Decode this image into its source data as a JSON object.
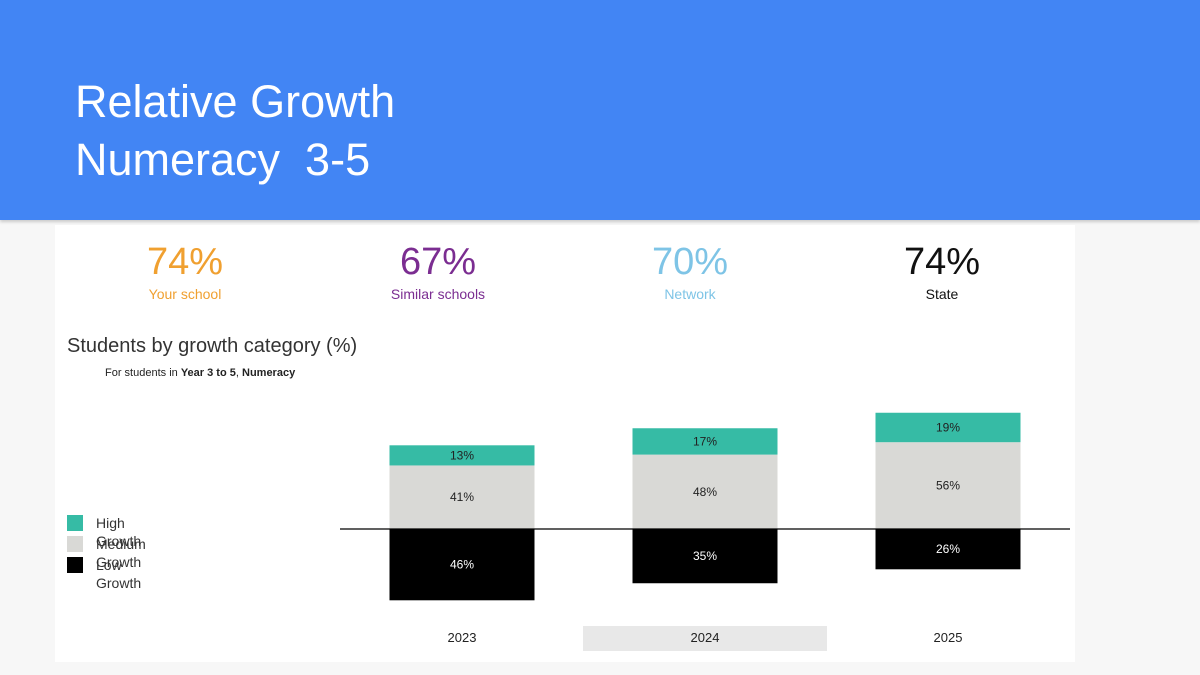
{
  "slide": {
    "title_line1": "Relative Growth",
    "title_line2": "Numeracy  3-5"
  },
  "stats": [
    {
      "value": "74%",
      "label": "Your school",
      "color": "#f0a030"
    },
    {
      "value": "67%",
      "label": "Similar schools",
      "color": "#7b2d91"
    },
    {
      "value": "70%",
      "label": "Network",
      "color": "#7ec4e6"
    },
    {
      "value": "74%",
      "label": "State",
      "color": "#111111"
    }
  ],
  "chart_data": {
    "type": "bar",
    "title": "Students by growth category (%)",
    "subtitle_prefix": "For students in ",
    "subtitle_year": "Year 3 to 5",
    "subtitle_sep": ", ",
    "subtitle_subject": "Numeracy",
    "categories": [
      "2023",
      "2024",
      "2025"
    ],
    "highlighted_category": "2024",
    "series": [
      {
        "name": "High Growth",
        "values": [
          13,
          17,
          19
        ],
        "labels": [
          "13%",
          "17%",
          "19%"
        ],
        "color": "#36bba5",
        "position": "above-baseline-top"
      },
      {
        "name": "Medium Growth",
        "values": [
          41,
          48,
          56
        ],
        "labels": [
          "41%",
          "48%",
          "56%"
        ],
        "color": "#d9d9d6",
        "position": "above-baseline"
      },
      {
        "name": "Low Growth",
        "values": [
          46,
          35,
          26
        ],
        "labels": [
          "46%",
          "35%",
          "26%"
        ],
        "color": "#000000",
        "position": "below-baseline"
      }
    ],
    "stacking": "diverging",
    "legend_position": "left",
    "grid": false
  }
}
